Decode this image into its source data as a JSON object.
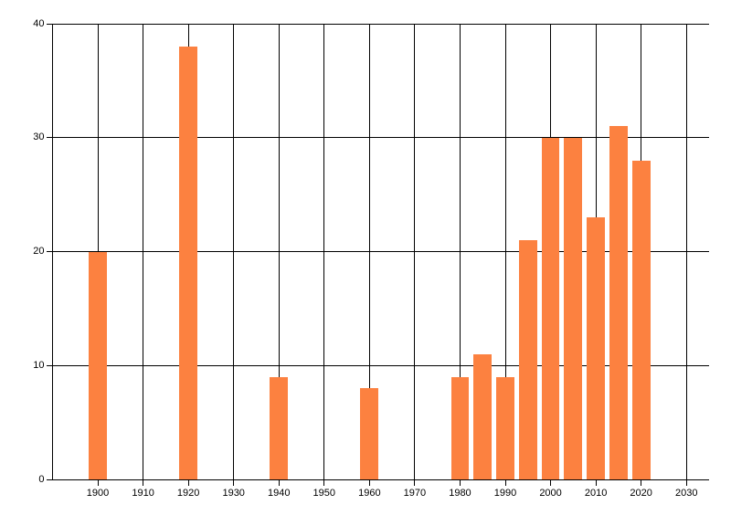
{
  "chart_data": {
    "type": "bar",
    "title": "",
    "xlabel": "",
    "ylabel": "",
    "x": [
      1900,
      1920,
      1940,
      1960,
      1980,
      1985,
      1990,
      1995,
      2000,
      2005,
      2010,
      2015,
      2020
    ],
    "values": [
      20,
      38,
      9,
      8,
      9,
      11,
      9,
      21,
      30,
      30,
      23,
      31,
      28
    ],
    "bar_width_years": 4,
    "xlim": [
      1890,
      2035
    ],
    "ylim": [
      0,
      40
    ],
    "x_ticks": [
      1900,
      1910,
      1920,
      1930,
      1940,
      1950,
      1960,
      1970,
      1980,
      1990,
      2000,
      2010,
      2020,
      2030
    ],
    "x_tick_labels": [
      "1900",
      "1910",
      "1920",
      "1930",
      "1940",
      "1950",
      "1960",
      "1970",
      "1980",
      "1990",
      "2000",
      "2010",
      "2020",
      "2030"
    ],
    "y_ticks": [
      0,
      10,
      20,
      30,
      40
    ],
    "y_tick_labels": [
      "0",
      "10",
      "20",
      "30",
      "40"
    ],
    "grid": true,
    "legend": "none",
    "colors": {
      "bar": "#FC8140",
      "grid": "#000000",
      "axis": "#000000",
      "text": "#000000",
      "background": "#FFFFFF"
    }
  }
}
